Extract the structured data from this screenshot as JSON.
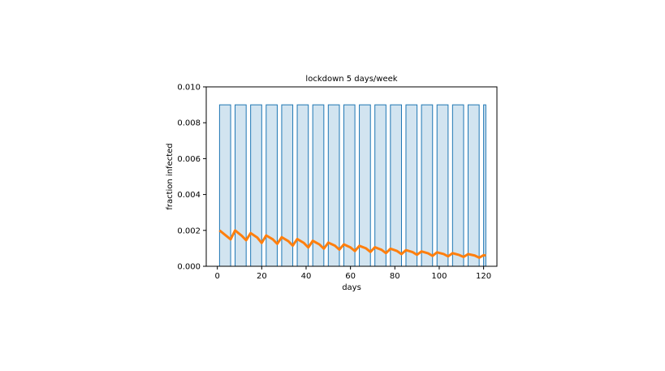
{
  "chart_data": {
    "type": "line",
    "title": "lockdown 5 days/week",
    "xlabel": "days",
    "ylabel": "fraction infected",
    "xlim": [
      -5,
      126
    ],
    "ylim": [
      0,
      0.01
    ],
    "xticks": [
      0,
      20,
      40,
      60,
      80,
      100,
      120
    ],
    "xtick_labels": [
      "0",
      "20",
      "40",
      "60",
      "80",
      "100",
      "120"
    ],
    "yticks": [
      0,
      0.002,
      0.004,
      0.006,
      0.008,
      0.01
    ],
    "ytick_labels": [
      "0.000",
      "0.002",
      "0.004",
      "0.006",
      "0.008",
      "0.010"
    ],
    "grid": false,
    "lockdown_shading": {
      "level": 0.009,
      "period_days": 7,
      "on_days": 5,
      "start_day": 1,
      "end_day": 121,
      "color": "#1f77b4",
      "fill_opacity": 0.2
    },
    "series": [
      {
        "color": "#ff7f0e",
        "x": [
          1,
          4,
          6,
          8,
          11,
          13,
          15,
          18,
          20,
          22,
          25,
          27,
          29,
          32,
          34,
          36,
          39,
          41,
          43,
          46,
          48,
          50,
          53,
          55,
          57,
          60,
          62,
          64,
          67,
          69,
          71,
          74,
          76,
          78,
          81,
          83,
          85,
          88,
          90,
          92,
          95,
          97,
          99,
          102,
          104,
          106,
          109,
          111,
          113,
          116,
          118,
          120,
          121
        ],
        "values": [
          0.002,
          0.0017,
          0.0015,
          0.002,
          0.0017,
          0.00145,
          0.00185,
          0.0016,
          0.0013,
          0.00172,
          0.0015,
          0.00125,
          0.00162,
          0.0014,
          0.00115,
          0.00152,
          0.0013,
          0.00105,
          0.00142,
          0.00122,
          0.00098,
          0.00132,
          0.00115,
          0.00093,
          0.00122,
          0.00105,
          0.00085,
          0.00114,
          0.001,
          0.0008,
          0.00106,
          0.00092,
          0.00073,
          0.00098,
          0.00085,
          0.00068,
          0.0009,
          0.00079,
          0.00064,
          0.00083,
          0.00072,
          0.00058,
          0.00078,
          0.00068,
          0.00055,
          0.00073,
          0.00063,
          0.00052,
          0.00068,
          0.0006,
          0.00048,
          0.00062,
          0.0006
        ]
      }
    ]
  }
}
